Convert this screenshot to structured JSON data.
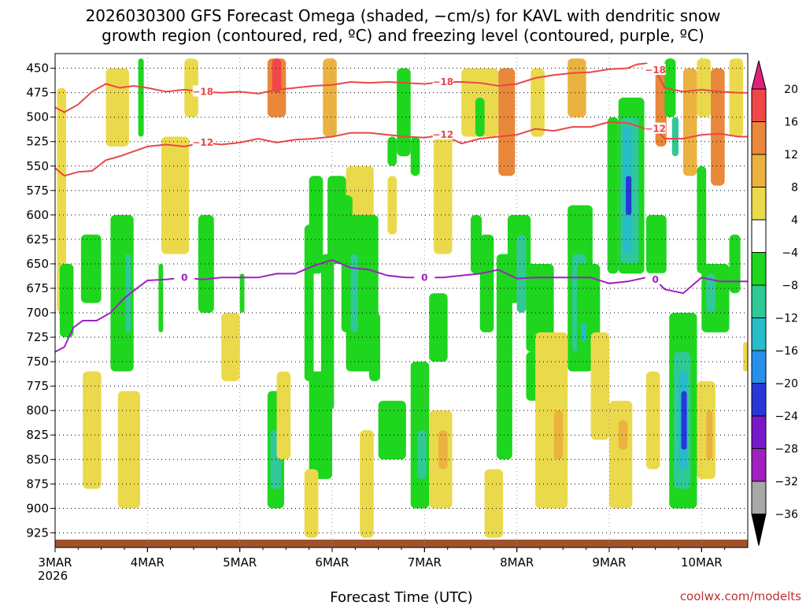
{
  "chart_data": {
    "type": "heatmap",
    "title_line1": "2026030300 GFS Forecast Omega (shaded, −cm/s) for KAVL with dendritic snow",
    "title_line2": "growth region (contoured, red, ºC) and freezing level (contoured, purple, ºC)",
    "xlabel": "Forecast Time (UTC)",
    "credit": "coolwx.com/modelts",
    "x_days": [
      0,
      1,
      2,
      3,
      4,
      5,
      6,
      7
    ],
    "x_day_labels": [
      "3MAR",
      "4MAR",
      "5MAR",
      "6MAR",
      "7MAR",
      "8MAR",
      "9MAR",
      "10MAR"
    ],
    "x_year_label": "2026",
    "xlim": [
      0,
      7.5
    ],
    "y_levels_hpa": [
      450,
      475,
      500,
      525,
      550,
      575,
      600,
      625,
      650,
      675,
      700,
      725,
      750,
      775,
      800,
      825,
      850,
      875,
      900,
      925
    ],
    "ylim_hpa": [
      435,
      940
    ],
    "colorbar": {
      "labels": [
        "20",
        "16",
        "12",
        "8",
        "4",
        "−4",
        "−8",
        "−12",
        "−16",
        "−20",
        "−24",
        "−28",
        "−32",
        "−36"
      ],
      "colors": [
        "#e0207a",
        "#f04848",
        "#e9873a",
        "#ebb240",
        "#ebd94c",
        "#ffffff",
        "#1ed61e",
        "#30c896",
        "#28bcc8",
        "#2890ec",
        "#2838d8",
        "#7818c8",
        "#a020c0",
        "#a8a8a8",
        "#000000"
      ]
    },
    "contours": [
      {
        "name": "-18 C",
        "label": "−18",
        "color": "#e84848",
        "x": [
          0,
          0.1,
          0.25,
          0.4,
          0.55,
          0.7,
          0.85,
          1.0,
          1.2,
          1.4,
          1.6,
          1.8,
          2.0,
          2.2,
          2.4,
          2.6,
          2.8,
          3.0,
          3.2,
          3.4,
          3.6,
          3.8,
          4.0,
          4.2,
          4.4,
          4.6,
          4.8,
          5.0,
          5.2,
          5.4,
          5.6,
          5.8,
          6.0,
          6.2,
          6.3,
          6.4,
          6.5,
          6.6,
          6.8,
          7.0,
          7.2,
          7.4,
          7.5
        ],
        "y": [
          490,
          495,
          487,
          474,
          466,
          470,
          468,
          470,
          474,
          472,
          474,
          475,
          474,
          476,
          472,
          470,
          468,
          467,
          464,
          465,
          464,
          465,
          466,
          464,
          464,
          465,
          468,
          466,
          460,
          457,
          455,
          454,
          451,
          450,
          446,
          445,
          452,
          470,
          474,
          472,
          474,
          475,
          475
        ]
      },
      {
        "name": "-12 C",
        "label": "−12",
        "color": "#e84848",
        "x": [
          0,
          0.1,
          0.25,
          0.4,
          0.55,
          0.7,
          0.85,
          1.0,
          1.2,
          1.4,
          1.6,
          1.8,
          2.0,
          2.2,
          2.4,
          2.6,
          2.8,
          3.0,
          3.2,
          3.4,
          3.6,
          3.8,
          4.0,
          4.2,
          4.4,
          4.6,
          4.8,
          5.0,
          5.2,
          5.4,
          5.6,
          5.8,
          6.0,
          6.2,
          6.4,
          6.5,
          6.6,
          6.8,
          7.0,
          7.2,
          7.4,
          7.5
        ],
        "y": [
          552,
          560,
          556,
          555,
          544,
          540,
          535,
          530,
          528,
          530,
          526,
          528,
          526,
          522,
          526,
          523,
          522,
          520,
          516,
          516,
          518,
          520,
          521,
          518,
          527,
          522,
          520,
          518,
          512,
          514,
          510,
          510,
          505,
          506,
          512,
          512,
          522,
          522,
          518,
          517,
          520,
          520
        ]
      },
      {
        "name": "0 C",
        "label": "0",
        "color": "#a020c0",
        "x": [
          0,
          0.1,
          0.2,
          0.3,
          0.45,
          0.6,
          0.75,
          0.9,
          1.0,
          1.2,
          1.4,
          1.6,
          1.8,
          2.0,
          2.2,
          2.4,
          2.6,
          2.8,
          3.0,
          3.2,
          3.4,
          3.6,
          3.8,
          4.0,
          4.2,
          4.4,
          4.6,
          4.8,
          5.0,
          5.2,
          5.4,
          5.6,
          5.8,
          6.0,
          6.2,
          6.4,
          6.5,
          6.6,
          6.8,
          7.0,
          7.2,
          7.4,
          7.5
        ],
        "y": [
          740,
          735,
          715,
          708,
          708,
          700,
          685,
          674,
          667,
          666,
          664,
          666,
          664,
          664,
          664,
          660,
          660,
          652,
          646,
          654,
          656,
          662,
          664,
          664,
          664,
          662,
          660,
          656,
          665,
          664,
          664,
          664,
          664,
          670,
          668,
          664,
          666,
          676,
          680,
          664,
          668,
          668,
          668
        ]
      }
    ],
    "omega_cells": [
      {
        "t0": 0.02,
        "t1": 0.12,
        "p0": 470,
        "p1": 700,
        "v": 6
      },
      {
        "t0": 0.55,
        "t1": 0.8,
        "p0": 450,
        "p1": 530,
        "v": 5
      },
      {
        "t0": 1.15,
        "t1": 1.45,
        "p0": 520,
        "p1": 640,
        "v": 5
      },
      {
        "t0": 1.4,
        "t1": 1.55,
        "p0": 440,
        "p1": 500,
        "v": 5
      },
      {
        "t0": 2.3,
        "t1": 2.5,
        "p0": 440,
        "p1": 500,
        "v": 12
      },
      {
        "t0": 2.35,
        "t1": 2.45,
        "p0": 440,
        "p1": 475,
        "v": 16
      },
      {
        "t0": 2.9,
        "t1": 3.05,
        "p0": 440,
        "p1": 520,
        "v": 10
      },
      {
        "t0": 3.15,
        "t1": 3.45,
        "p0": 550,
        "p1": 640,
        "v": 5
      },
      {
        "t0": 3.6,
        "t1": 3.7,
        "p0": 560,
        "p1": 620,
        "v": 5
      },
      {
        "t0": 4.1,
        "t1": 4.3,
        "p0": 520,
        "p1": 640,
        "v": 5
      },
      {
        "t0": 4.4,
        "t1": 4.8,
        "p0": 450,
        "p1": 520,
        "v": 6
      },
      {
        "t0": 4.8,
        "t1": 4.98,
        "p0": 450,
        "p1": 560,
        "v": 12
      },
      {
        "t0": 5.15,
        "t1": 5.3,
        "p0": 450,
        "p1": 520,
        "v": 5
      },
      {
        "t0": 5.55,
        "t1": 5.75,
        "p0": 440,
        "p1": 500,
        "v": 10
      },
      {
        "t0": 6.5,
        "t1": 6.62,
        "p0": 450,
        "p1": 530,
        "v": 12
      },
      {
        "t0": 6.8,
        "t1": 6.95,
        "p0": 450,
        "p1": 560,
        "v": 8
      },
      {
        "t0": 6.95,
        "t1": 7.1,
        "p0": 440,
        "p1": 500,
        "v": 6
      },
      {
        "t0": 7.1,
        "t1": 7.25,
        "p0": 450,
        "p1": 570,
        "v": 12
      },
      {
        "t0": 7.3,
        "t1": 7.45,
        "p0": 440,
        "p1": 520,
        "v": 6
      },
      {
        "t0": 0.05,
        "t1": 0.2,
        "p0": 650,
        "p1": 725,
        "v": -6
      },
      {
        "t0": 0.28,
        "t1": 0.5,
        "p0": 620,
        "p1": 690,
        "v": -6
      },
      {
        "t0": 0.6,
        "t1": 0.85,
        "p0": 600,
        "p1": 760,
        "v": -6
      },
      {
        "t0": 0.76,
        "t1": 0.82,
        "p0": 640,
        "p1": 720,
        "v": -10
      },
      {
        "t0": 0.9,
        "t1": 0.96,
        "p0": 440,
        "p1": 520,
        "v": -6
      },
      {
        "t0": 1.12,
        "t1": 1.17,
        "p0": 650,
        "p1": 720,
        "v": -6
      },
      {
        "t0": 1.55,
        "t1": 1.72,
        "p0": 600,
        "p1": 700,
        "v": -6
      },
      {
        "t0": 2.0,
        "t1": 2.05,
        "p0": 660,
        "p1": 700,
        "v": -6
      },
      {
        "t0": 2.75,
        "t1": 2.9,
        "p0": 560,
        "p1": 660,
        "v": -6
      },
      {
        "t0": 2.3,
        "t1": 2.48,
        "p0": 780,
        "p1": 900,
        "v": -6
      },
      {
        "t0": 2.33,
        "t1": 2.45,
        "p0": 820,
        "p1": 880,
        "v": -10
      },
      {
        "t0": 2.7,
        "t1": 2.8,
        "p0": 610,
        "p1": 770,
        "v": -6
      },
      {
        "t0": 2.95,
        "t1": 3.15,
        "p0": 560,
        "p1": 650,
        "v": -6
      },
      {
        "t0": 2.88,
        "t1": 3.02,
        "p0": 640,
        "p1": 800,
        "v": -6
      },
      {
        "t0": 2.75,
        "t1": 3.0,
        "p0": 760,
        "p1": 870,
        "v": -6
      },
      {
        "t0": 3.1,
        "t1": 3.22,
        "p0": 580,
        "p1": 720,
        "v": -6
      },
      {
        "t0": 3.15,
        "t1": 3.5,
        "p0": 600,
        "p1": 760,
        "v": -6
      },
      {
        "t0": 3.2,
        "t1": 3.28,
        "p0": 640,
        "p1": 720,
        "v": -10
      },
      {
        "t0": 3.4,
        "t1": 3.52,
        "p0": 700,
        "p1": 770,
        "v": -6
      },
      {
        "t0": 3.6,
        "t1": 3.7,
        "p0": 520,
        "p1": 550,
        "v": -6
      },
      {
        "t0": 3.5,
        "t1": 3.8,
        "p0": 790,
        "p1": 850,
        "v": -6
      },
      {
        "t0": 3.7,
        "t1": 3.85,
        "p0": 450,
        "p1": 540,
        "v": -6
      },
      {
        "t0": 3.85,
        "t1": 3.95,
        "p0": 520,
        "p1": 560,
        "v": -6
      },
      {
        "t0": 3.85,
        "t1": 4.05,
        "p0": 750,
        "p1": 900,
        "v": -6
      },
      {
        "t0": 3.92,
        "t1": 4.02,
        "p0": 820,
        "p1": 870,
        "v": -10
      },
      {
        "t0": 4.05,
        "t1": 4.25,
        "p0": 680,
        "p1": 750,
        "v": -6
      },
      {
        "t0": 4.5,
        "t1": 4.62,
        "p0": 600,
        "p1": 660,
        "v": -6
      },
      {
        "t0": 4.55,
        "t1": 4.65,
        "p0": 480,
        "p1": 520,
        "v": -6
      },
      {
        "t0": 4.6,
        "t1": 4.75,
        "p0": 620,
        "p1": 720,
        "v": -6
      },
      {
        "t0": 4.78,
        "t1": 4.95,
        "p0": 640,
        "p1": 850,
        "v": -6
      },
      {
        "t0": 4.9,
        "t1": 5.15,
        "p0": 600,
        "p1": 690,
        "v": -6
      },
      {
        "t0": 5.0,
        "t1": 5.1,
        "p0": 620,
        "p1": 700,
        "v": -10
      },
      {
        "t0": 5.1,
        "t1": 5.4,
        "p0": 650,
        "p1": 740,
        "v": -6
      },
      {
        "t0": 5.1,
        "t1": 5.3,
        "p0": 740,
        "p1": 790,
        "v": -6
      },
      {
        "t0": 5.55,
        "t1": 5.82,
        "p0": 590,
        "p1": 760,
        "v": -6
      },
      {
        "t0": 5.6,
        "t1": 5.75,
        "p0": 640,
        "p1": 740,
        "v": -10
      },
      {
        "t0": 5.65,
        "t1": 5.9,
        "p0": 650,
        "p1": 750,
        "v": -6
      },
      {
        "t0": 5.7,
        "t1": 5.75,
        "p0": 710,
        "p1": 730,
        "v": -14
      },
      {
        "t0": 5.98,
        "t1": 6.1,
        "p0": 500,
        "p1": 660,
        "v": -6
      },
      {
        "t0": 6.1,
        "t1": 6.38,
        "p0": 480,
        "p1": 660,
        "v": -6
      },
      {
        "t0": 6.12,
        "t1": 6.32,
        "p0": 500,
        "p1": 650,
        "v": -10
      },
      {
        "t0": 6.15,
        "t1": 6.25,
        "p0": 510,
        "p1": 640,
        "v": -14
      },
      {
        "t0": 6.18,
        "t1": 6.24,
        "p0": 560,
        "p1": 600,
        "v": -22
      },
      {
        "t0": 6.4,
        "t1": 6.62,
        "p0": 600,
        "p1": 660,
        "v": -6
      },
      {
        "t0": 6.6,
        "t1": 6.72,
        "p0": 440,
        "p1": 500,
        "v": -6
      },
      {
        "t0": 6.68,
        "t1": 6.75,
        "p0": 500,
        "p1": 540,
        "v": -10
      },
      {
        "t0": 6.65,
        "t1": 6.95,
        "p0": 700,
        "p1": 900,
        "v": -6
      },
      {
        "t0": 6.7,
        "t1": 6.88,
        "p0": 740,
        "p1": 880,
        "v": -10
      },
      {
        "t0": 6.75,
        "t1": 6.85,
        "p0": 760,
        "p1": 860,
        "v": -14
      },
      {
        "t0": 6.78,
        "t1": 6.84,
        "p0": 780,
        "p1": 840,
        "v": -20
      },
      {
        "t0": 6.95,
        "t1": 7.05,
        "p0": 550,
        "p1": 660,
        "v": -6
      },
      {
        "t0": 7.0,
        "t1": 7.3,
        "p0": 650,
        "p1": 720,
        "v": -6
      },
      {
        "t0": 7.05,
        "t1": 7.15,
        "p0": 660,
        "p1": 700,
        "v": -10
      },
      {
        "t0": 7.3,
        "t1": 7.42,
        "p0": 620,
        "p1": 680,
        "v": -6
      },
      {
        "t0": 0.3,
        "t1": 0.5,
        "p0": 760,
        "p1": 880,
        "v": 5
      },
      {
        "t0": 0.68,
        "t1": 0.92,
        "p0": 780,
        "p1": 900,
        "v": 5
      },
      {
        "t0": 1.8,
        "t1": 2.0,
        "p0": 700,
        "p1": 770,
        "v": 5
      },
      {
        "t0": 2.4,
        "t1": 2.55,
        "p0": 760,
        "p1": 850,
        "v": 5
      },
      {
        "t0": 2.7,
        "t1": 2.85,
        "p0": 860,
        "p1": 930,
        "v": 5
      },
      {
        "t0": 3.3,
        "t1": 3.45,
        "p0": 820,
        "p1": 930,
        "v": 5
      },
      {
        "t0": 4.05,
        "t1": 4.3,
        "p0": 800,
        "p1": 900,
        "v": 5
      },
      {
        "t0": 4.15,
        "t1": 4.25,
        "p0": 820,
        "p1": 860,
        "v": 9
      },
      {
        "t0": 4.65,
        "t1": 4.85,
        "p0": 860,
        "p1": 930,
        "v": 5
      },
      {
        "t0": 5.2,
        "t1": 5.55,
        "p0": 720,
        "p1": 900,
        "v": 5
      },
      {
        "t0": 5.4,
        "t1": 5.5,
        "p0": 800,
        "p1": 850,
        "v": 9
      },
      {
        "t0": 5.8,
        "t1": 6.0,
        "p0": 720,
        "p1": 830,
        "v": 5
      },
      {
        "t0": 6.0,
        "t1": 6.25,
        "p0": 790,
        "p1": 900,
        "v": 5
      },
      {
        "t0": 6.1,
        "t1": 6.2,
        "p0": 810,
        "p1": 840,
        "v": 9
      },
      {
        "t0": 6.4,
        "t1": 6.55,
        "p0": 760,
        "p1": 860,
        "v": 5
      },
      {
        "t0": 6.95,
        "t1": 7.15,
        "p0": 770,
        "p1": 870,
        "v": 5
      },
      {
        "t0": 7.05,
        "t1": 7.12,
        "p0": 800,
        "p1": 850,
        "v": 9
      },
      {
        "t0": 7.45,
        "t1": 7.5,
        "p0": 730,
        "p1": 760,
        "v": 5
      }
    ]
  }
}
